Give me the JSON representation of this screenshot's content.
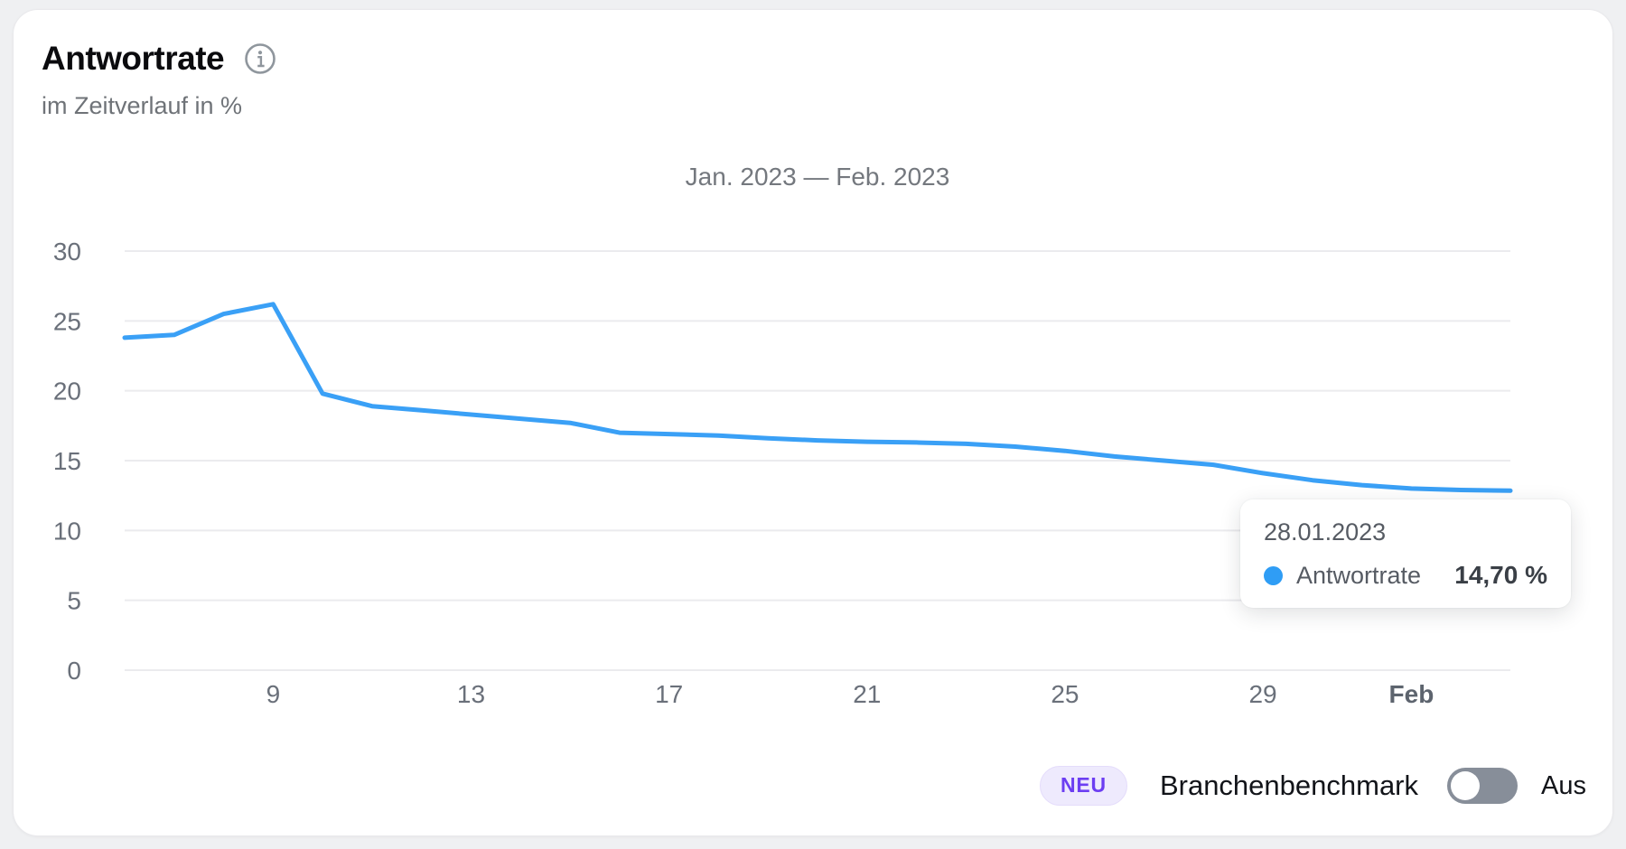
{
  "window": {
    "background": "#eff0f2",
    "card_background": "#ffffff"
  },
  "header": {
    "title": "Antwortrate",
    "subtitle": "im Zeitverlauf in %",
    "info_icon": "info-circle-icon"
  },
  "chart_data": {
    "type": "line",
    "title": "Jan. 2023 — Feb. 2023",
    "xlabel": "",
    "ylabel": "",
    "unit": "%",
    "ylim": [
      0,
      30
    ],
    "y_ticks": [
      0,
      5,
      10,
      15,
      20,
      25,
      30
    ],
    "grid": "horizontal",
    "gridline_color": "#ebebee",
    "axis_label_color": "#6a707a",
    "x_tick_labels": [
      "9",
      "13",
      "17",
      "21",
      "25",
      "29",
      "Feb"
    ],
    "x_tick_indices": [
      3,
      7,
      11,
      15,
      19,
      23,
      26
    ],
    "x_tick_bold": [
      false,
      false,
      false,
      false,
      false,
      false,
      true
    ],
    "legend_position": "none",
    "series": [
      {
        "name": "Antwortrate",
        "color": "#3aa0f6",
        "x_dates": [
          "06.01.2023",
          "07.01.2023",
          "08.01.2023",
          "09.01.2023",
          "10.01.2023",
          "11.01.2023",
          "12.01.2023",
          "13.01.2023",
          "14.01.2023",
          "15.01.2023",
          "16.01.2023",
          "17.01.2023",
          "18.01.2023",
          "19.01.2023",
          "20.01.2023",
          "21.01.2023",
          "22.01.2023",
          "23.01.2023",
          "24.01.2023",
          "25.01.2023",
          "26.01.2023",
          "27.01.2023",
          "28.01.2023",
          "29.01.2023",
          "30.01.2023",
          "31.01.2023",
          "01.02.2023",
          "02.02.2023",
          "03.02.2023"
        ],
        "values": [
          23.8,
          24.0,
          25.5,
          26.2,
          19.8,
          18.9,
          18.6,
          18.3,
          18.0,
          17.7,
          17.0,
          16.9,
          16.8,
          16.6,
          16.45,
          16.35,
          16.3,
          16.2,
          16.0,
          15.7,
          15.3,
          15.0,
          14.7,
          14.1,
          13.6,
          13.25,
          13.0,
          12.9,
          12.85
        ]
      }
    ]
  },
  "tooltip": {
    "date": "28.01.2023",
    "series": "Antwortrate",
    "value": "14,70 %",
    "dot_color": "#2f9df5"
  },
  "benchmark_control": {
    "badge": "NEU",
    "badge_text_color": "#6c3ef2",
    "badge_background": "#eeeafd",
    "label": "Branchenbenchmark",
    "toggle_state": "off",
    "state_label": "Aus",
    "toggle_color": "#878e99"
  }
}
